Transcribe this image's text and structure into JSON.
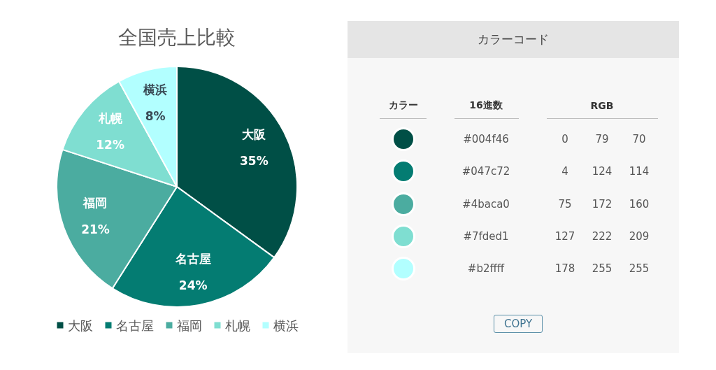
{
  "chart_data": [
    {
      "type": "pie",
      "title": "全国売上比較",
      "categories": [
        "大阪",
        "名古屋",
        "福岡",
        "札幌",
        "横浜"
      ],
      "values": [
        35,
        24,
        21,
        12,
        8
      ],
      "colors": [
        "#004f46",
        "#047c72",
        "#4baca0",
        "#7fded1",
        "#b2ffff"
      ],
      "value_labels": [
        "35%",
        "24%",
        "21%",
        "12%",
        "8%"
      ],
      "legend": "bottom"
    },
    {
      "type": "other",
      "title": "カラーコード",
      "categories": [
        "#004f46",
        "#047c72",
        "#4baca0",
        "#7fded1",
        "#b2ffff"
      ],
      "annotations": [
        "カラー",
        "16進数",
        "RGB",
        "0",
        "79",
        "70",
        "4",
        "124",
        "114",
        "75",
        "172",
        "160",
        "127",
        "222",
        "209",
        "178",
        "255",
        "255",
        "COPY"
      ]
    }
  ]
}
